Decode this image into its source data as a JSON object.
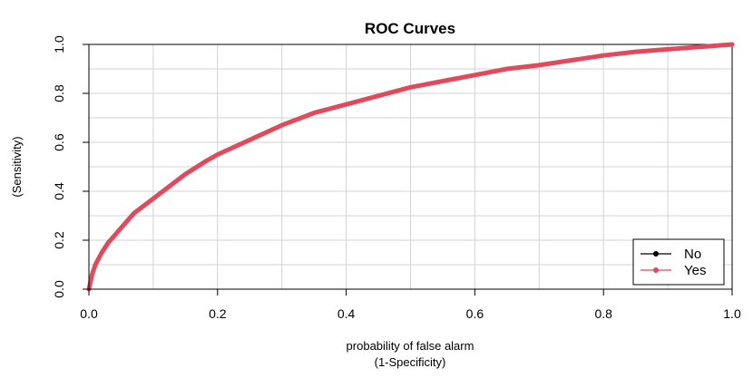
{
  "chart_data": {
    "type": "line",
    "title": "ROC Curves",
    "xlabel_line1": "probability of false alarm",
    "xlabel_line2": "(1-Specificity)",
    "ylabel": "(Sensitivity)",
    "xlim": [
      0.0,
      1.0
    ],
    "ylim": [
      0.0,
      1.0
    ],
    "x_ticks": [
      0.0,
      0.2,
      0.4,
      0.6,
      0.8,
      1.0
    ],
    "x_tick_labels": [
      "0.0",
      "0.2",
      "0.4",
      "0.6",
      "0.8",
      "1.0"
    ],
    "y_ticks": [
      0.0,
      0.2,
      0.4,
      0.6,
      0.8,
      1.0
    ],
    "y_tick_labels": [
      "0.0",
      "0.2",
      "0.4",
      "0.6",
      "0.8",
      "1.0"
    ],
    "grid_x": [
      0.0,
      0.1,
      0.2,
      0.3,
      0.4,
      0.5,
      0.6,
      0.7,
      0.8,
      0.9,
      1.0
    ],
    "grid_y": [
      0.0,
      0.1,
      0.2,
      0.3,
      0.4,
      0.5,
      0.6,
      0.7,
      0.8,
      0.9,
      1.0
    ],
    "grid": true,
    "legend_position": "bottom-right",
    "series": [
      {
        "name": "No",
        "color": "#000000",
        "x": [],
        "y": []
      },
      {
        "name": "Yes",
        "color": "#E2495B",
        "x": [
          0.0,
          0.005,
          0.01,
          0.02,
          0.03,
          0.04,
          0.05,
          0.06,
          0.07,
          0.08,
          0.1,
          0.12,
          0.15,
          0.18,
          0.2,
          0.25,
          0.3,
          0.35,
          0.4,
          0.45,
          0.5,
          0.55,
          0.6,
          0.65,
          0.7,
          0.75,
          0.8,
          0.85,
          0.9,
          0.95,
          1.0
        ],
        "y": [
          0.0,
          0.06,
          0.1,
          0.15,
          0.19,
          0.22,
          0.25,
          0.28,
          0.31,
          0.33,
          0.37,
          0.41,
          0.47,
          0.52,
          0.55,
          0.61,
          0.67,
          0.72,
          0.755,
          0.79,
          0.825,
          0.85,
          0.875,
          0.9,
          0.915,
          0.935,
          0.955,
          0.97,
          0.98,
          0.99,
          1.0
        ]
      }
    ]
  }
}
